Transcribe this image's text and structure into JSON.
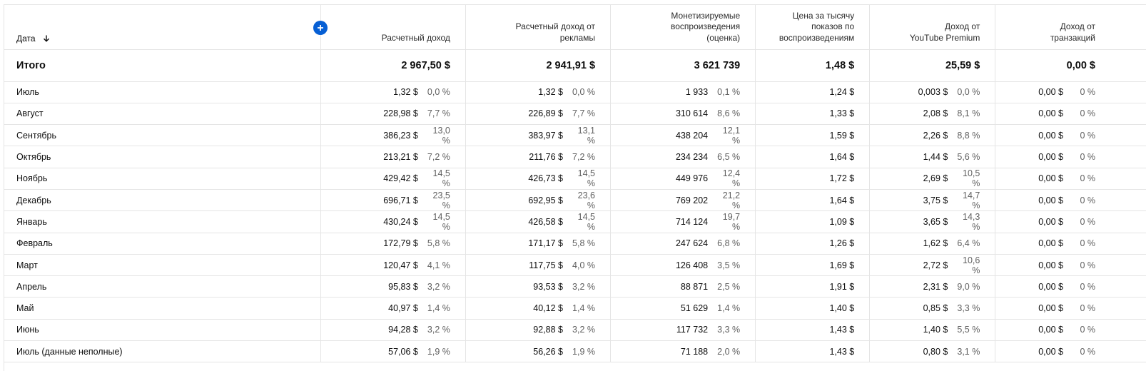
{
  "header": {
    "date_label": "Дата",
    "sort_icon": "arrow-down-icon",
    "add_icon": "plus-circle-icon",
    "columns": [
      {
        "l1": "Расчетный доход",
        "l2": "",
        "l3": ""
      },
      {
        "l1": "Расчетный доход от",
        "l2": "рекламы",
        "l3": ""
      },
      {
        "l1": "Монетизируемые",
        "l2": "воспроизведения",
        "l3": "(оценка)"
      },
      {
        "l1": "Цена за тысячу",
        "l2": "показов по",
        "l3": "воспроизведениям"
      },
      {
        "l1": "Доход от",
        "l2": "YouTube Premium",
        "l3": ""
      },
      {
        "l1": "Доход от",
        "l2": "транзакций",
        "l3": ""
      }
    ]
  },
  "totals": {
    "label": "Итого",
    "values": [
      "2 967,50 $",
      "2 941,91 $",
      "3 621 739",
      "1,48 $",
      "25,59 $",
      "0,00 $"
    ]
  },
  "rows": [
    {
      "label": "Июль",
      "c1v": "1,32 $",
      "c1p": "0,0 %",
      "c2v": "1,32 $",
      "c2p": "0,0 %",
      "c3v": "1 933",
      "c3p": "0,1 %",
      "c4v": "1,24 $",
      "c5v": "0,003 $",
      "c5p": "0,0 %",
      "c6v": "0,00 $",
      "c6p": "0 %"
    },
    {
      "label": "Август",
      "c1v": "228,98 $",
      "c1p": "7,7 %",
      "c2v": "226,89 $",
      "c2p": "7,7 %",
      "c3v": "310 614",
      "c3p": "8,6 %",
      "c4v": "1,33 $",
      "c5v": "2,08 $",
      "c5p": "8,1 %",
      "c6v": "0,00 $",
      "c6p": "0 %"
    },
    {
      "label": "Сентябрь",
      "c1v": "386,23 $",
      "c1p": "13,0 %",
      "c2v": "383,97 $",
      "c2p": "13,1 %",
      "c3v": "438 204",
      "c3p": "12,1 %",
      "c4v": "1,59 $",
      "c5v": "2,26 $",
      "c5p": "8,8 %",
      "c6v": "0,00 $",
      "c6p": "0 %"
    },
    {
      "label": "Октябрь",
      "c1v": "213,21 $",
      "c1p": "7,2 %",
      "c2v": "211,76 $",
      "c2p": "7,2 %",
      "c3v": "234 234",
      "c3p": "6,5 %",
      "c4v": "1,64 $",
      "c5v": "1,44 $",
      "c5p": "5,6 %",
      "c6v": "0,00 $",
      "c6p": "0 %"
    },
    {
      "label": "Ноябрь",
      "c1v": "429,42 $",
      "c1p": "14,5 %",
      "c2v": "426,73 $",
      "c2p": "14,5 %",
      "c3v": "449 976",
      "c3p": "12,4 %",
      "c4v": "1,72 $",
      "c5v": "2,69 $",
      "c5p": "10,5 %",
      "c6v": "0,00 $",
      "c6p": "0 %"
    },
    {
      "label": "Декабрь",
      "c1v": "696,71 $",
      "c1p": "23,5 %",
      "c2v": "692,95 $",
      "c2p": "23,6 %",
      "c3v": "769 202",
      "c3p": "21,2 %",
      "c4v": "1,64 $",
      "c5v": "3,75 $",
      "c5p": "14,7 %",
      "c6v": "0,00 $",
      "c6p": "0 %"
    },
    {
      "label": "Январь",
      "c1v": "430,24 $",
      "c1p": "14,5 %",
      "c2v": "426,58 $",
      "c2p": "14,5 %",
      "c3v": "714 124",
      "c3p": "19,7 %",
      "c4v": "1,09 $",
      "c5v": "3,65 $",
      "c5p": "14,3 %",
      "c6v": "0,00 $",
      "c6p": "0 %"
    },
    {
      "label": "Февраль",
      "c1v": "172,79 $",
      "c1p": "5,8 %",
      "c2v": "171,17 $",
      "c2p": "5,8 %",
      "c3v": "247 624",
      "c3p": "6,8 %",
      "c4v": "1,26 $",
      "c5v": "1,62 $",
      "c5p": "6,4 %",
      "c6v": "0,00 $",
      "c6p": "0 %"
    },
    {
      "label": "Март",
      "c1v": "120,47 $",
      "c1p": "4,1 %",
      "c2v": "117,75 $",
      "c2p": "4,0 %",
      "c3v": "126 408",
      "c3p": "3,5 %",
      "c4v": "1,69 $",
      "c5v": "2,72 $",
      "c5p": "10,6 %",
      "c6v": "0,00 $",
      "c6p": "0 %"
    },
    {
      "label": "Апрель",
      "c1v": "95,83 $",
      "c1p": "3,2 %",
      "c2v": "93,53 $",
      "c2p": "3,2 %",
      "c3v": "88 871",
      "c3p": "2,5 %",
      "c4v": "1,91 $",
      "c5v": "2,31 $",
      "c5p": "9,0 %",
      "c6v": "0,00 $",
      "c6p": "0 %"
    },
    {
      "label": "Май",
      "c1v": "40,97 $",
      "c1p": "1,4 %",
      "c2v": "40,12 $",
      "c2p": "1,4 %",
      "c3v": "51 629",
      "c3p": "1,4 %",
      "c4v": "1,40 $",
      "c5v": "0,85 $",
      "c5p": "3,3 %",
      "c6v": "0,00 $",
      "c6p": "0 %"
    },
    {
      "label": "Июнь",
      "c1v": "94,28 $",
      "c1p": "3,2 %",
      "c2v": "92,88 $",
      "c2p": "3,2 %",
      "c3v": "117 732",
      "c3p": "3,3 %",
      "c4v": "1,43 $",
      "c5v": "1,40 $",
      "c5p": "5,5 %",
      "c6v": "0,00 $",
      "c6p": "0 %"
    },
    {
      "label": "Июль (данные неполные)",
      "c1v": "57,06 $",
      "c1p": "1,9 %",
      "c2v": "56,26 $",
      "c2p": "1,9 %",
      "c3v": "71 188",
      "c3p": "2,0 %",
      "c4v": "1,43 $",
      "c5v": "0,80 $",
      "c5p": "3,1 %",
      "c6v": "0,00 $",
      "c6p": "0 %"
    }
  ]
}
